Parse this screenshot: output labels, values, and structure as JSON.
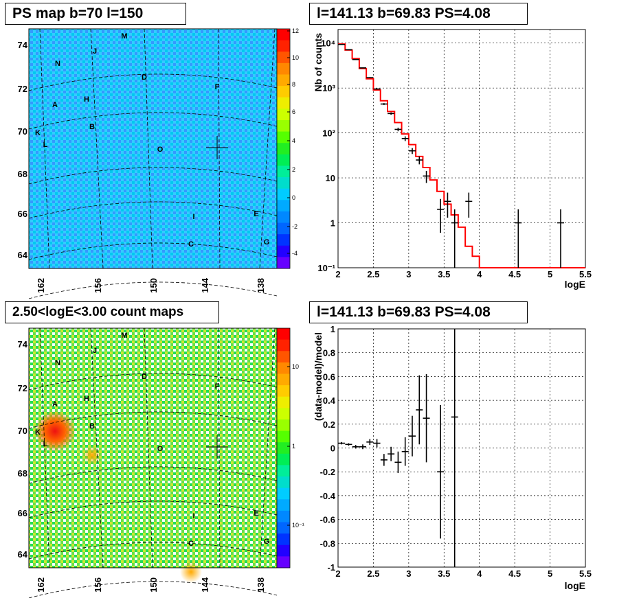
{
  "titles": {
    "map1": "PS map b=70 l=150",
    "spec": "l=141.13 b=69.83 PS=4.08",
    "map2": "2.50<logE<3.00 count maps",
    "resid": "l=141.13 b=69.83 PS=4.08"
  },
  "map_ticks": {
    "lat": [
      "74",
      "72",
      "70",
      "68",
      "66",
      "64"
    ],
    "lon": [
      "162",
      "156",
      "150",
      "144",
      "138"
    ]
  },
  "sources": [
    {
      "label": "M"
    },
    {
      "label": "J"
    },
    {
      "label": "N"
    },
    {
      "label": "D"
    },
    {
      "label": "F"
    },
    {
      "label": "A"
    },
    {
      "label": "H"
    },
    {
      "label": "B"
    },
    {
      "label": "K"
    },
    {
      "label": "L"
    },
    {
      "label": "O"
    },
    {
      "label": "I"
    },
    {
      "label": "E"
    },
    {
      "label": "C"
    },
    {
      "label": "G"
    }
  ],
  "colorbar1": {
    "ticks": [
      "12",
      "10",
      "8",
      "6",
      "4",
      "2",
      "0",
      "-2",
      "-4"
    ]
  },
  "colorbar2": {
    "ticks": [
      "10",
      "1",
      "10⁻¹"
    ]
  },
  "chart_data": [
    {
      "type": "line",
      "title": "l=141.13 b=69.83 PS=4.08",
      "xlabel": "logE",
      "ylabel": "Nb of counts",
      "xlim": [
        2,
        5.5
      ],
      "ylim": [
        0.1,
        20000
      ],
      "yscale": "log",
      "grid": true,
      "x_ticks": [
        "2",
        "2.5",
        "3",
        "3.5",
        "4",
        "4.5",
        "5",
        "5.5"
      ],
      "y_ticks": [
        "10⁻¹",
        "1",
        "10",
        "10²",
        "10³",
        "10⁴"
      ],
      "model_step": {
        "name": "model",
        "color": "#ff0000",
        "edges": [
          2,
          2.1,
          2.2,
          2.3,
          2.4,
          2.5,
          2.6,
          2.7,
          2.8,
          2.9,
          3.0,
          3.1,
          3.2,
          3.3,
          3.4,
          3.5,
          3.6,
          3.7,
          3.8,
          3.9,
          4.0,
          5.5
        ],
        "values": [
          9500,
          7000,
          4500,
          2700,
          1600,
          900,
          520,
          300,
          170,
          95,
          55,
          30,
          17,
          9,
          5,
          2.6,
          1.5,
          0.8,
          0.3,
          0.18,
          0.1
        ]
      },
      "data_points": {
        "name": "data",
        "color": "#000000",
        "x": [
          2.05,
          2.15,
          2.25,
          2.35,
          2.45,
          2.55,
          2.65,
          2.75,
          2.85,
          2.95,
          3.05,
          3.15,
          3.25,
          3.45,
          3.55,
          3.65,
          3.85,
          4.55,
          5.15
        ],
        "y": [
          9300,
          7100,
          4300,
          2800,
          1700,
          950,
          440,
          270,
          120,
          75,
          40,
          25,
          11,
          2,
          3,
          1,
          3,
          1,
          1
        ],
        "yerr_low": [
          100,
          85,
          65,
          53,
          41,
          31,
          21,
          16,
          11,
          9,
          6,
          5,
          3.3,
          1.4,
          1.7,
          1,
          1.7,
          1,
          1
        ],
        "yerr_high": [
          100,
          85,
          65,
          53,
          41,
          31,
          21,
          16,
          11,
          9,
          6,
          5,
          3.3,
          1.4,
          1.7,
          1,
          1.7,
          1,
          1
        ]
      }
    },
    {
      "type": "scatter",
      "title": "l=141.13 b=69.83 PS=4.08",
      "xlabel": "logE",
      "ylabel": "(data-model)/model",
      "xlim": [
        2,
        5.5
      ],
      "ylim": [
        -1,
        1
      ],
      "grid": true,
      "x_ticks": [
        "2",
        "2.5",
        "3",
        "3.5",
        "4",
        "4.5",
        "5",
        "5.5"
      ],
      "y_ticks": [
        "-1",
        "-0.8",
        "-0.6",
        "-0.4",
        "-0.2",
        "0",
        "0.2",
        "0.4",
        "0.6",
        "0.8",
        "1"
      ],
      "points": {
        "color": "#000000",
        "x": [
          2.05,
          2.15,
          2.25,
          2.35,
          2.45,
          2.55,
          2.65,
          2.75,
          2.85,
          2.95,
          3.05,
          3.15,
          3.25,
          3.45,
          3.65
        ],
        "y": [
          0.04,
          0.03,
          0.01,
          0.01,
          0.05,
          0.04,
          -0.1,
          -0.05,
          -0.12,
          -0.03,
          0.1,
          0.32,
          0.25,
          -0.2,
          0.26
        ],
        "yerr": [
          0.01,
          0.01,
          0.015,
          0.02,
          0.025,
          0.035,
          0.05,
          0.06,
          0.09,
          0.12,
          0.17,
          0.29,
          0.37,
          0.56,
          1.3
        ]
      }
    }
  ]
}
